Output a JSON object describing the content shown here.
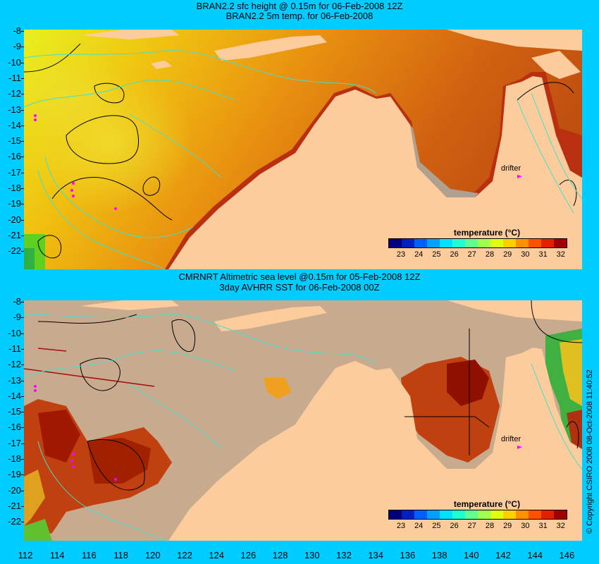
{
  "top_panel": {
    "title_line1": "BRAN2.2 sfc height @ 0.15m for 06-Feb-2008 12Z",
    "title_line2": "BRAN2.2 5m temp. for 06-Feb-2008",
    "drifter_label": "drifter"
  },
  "bottom_panel": {
    "title_line1": "CMRNRT Altimetric sea level  @0.15m  for 05-Feb-2008 12Z",
    "title_line2": "3day AVHRR SST for 06-Feb-2008 00Z",
    "drifter_label": "drifter"
  },
  "y_ticks": [
    "-8",
    "-9",
    "-10",
    "-11",
    "-12",
    "-13",
    "-14",
    "-15",
    "-16",
    "-17",
    "-18",
    "-19",
    "-20",
    "-21",
    "-22"
  ],
  "x_ticks": [
    "112",
    "114",
    "116",
    "118",
    "120",
    "122",
    "124",
    "126",
    "128",
    "130",
    "132",
    "134",
    "136",
    "138",
    "140",
    "142",
    "144",
    "146"
  ],
  "legend": {
    "title": "temperature (°C)",
    "labels": [
      "23",
      "24",
      "25",
      "26",
      "27",
      "28",
      "29",
      "30",
      "31",
      "32"
    ],
    "colors": [
      "#00007f",
      "#0020c0",
      "#0060ff",
      "#00a0ff",
      "#00e0ff",
      "#20ffd0",
      "#60ff90",
      "#a0ff50",
      "#e0ff10",
      "#ffd000",
      "#ff9000",
      "#ff5000",
      "#e02000",
      "#a00000"
    ]
  },
  "copyright": "© Copyright CSIRO 2008   08-Oct-2008 11:40:52",
  "colors": {
    "background": "#00ccff",
    "land": "#fccc9c",
    "no_data": "#c8ab8e",
    "contour": "#000000",
    "isobath": "#40e0d0",
    "drifter": "#ff00ff"
  }
}
